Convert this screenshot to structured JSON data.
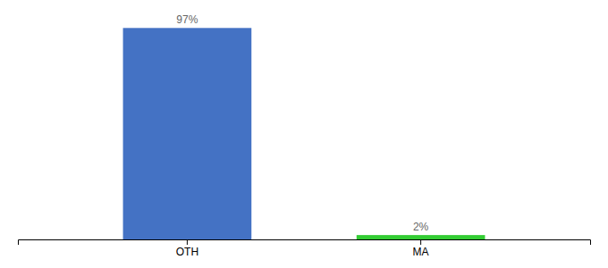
{
  "chart_data": {
    "type": "bar",
    "categories": [
      "OTH",
      "MA"
    ],
    "values": [
      97,
      2
    ],
    "value_labels": [
      "97%",
      "2%"
    ],
    "data_labels": true,
    "colors": [
      "#4472c4",
      "#33cc33"
    ],
    "ylim": [
      0,
      100
    ],
    "grid": false,
    "tick_labels": "x"
  }
}
